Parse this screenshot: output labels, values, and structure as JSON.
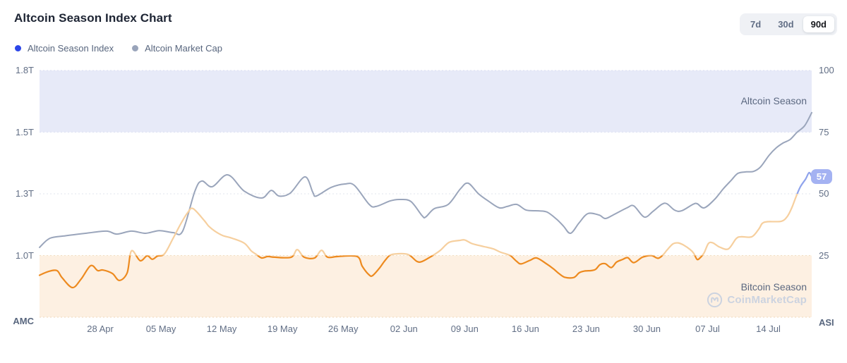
{
  "page": {
    "title": "Altcoin Season Index Chart",
    "watermark": "CoinMarketCap"
  },
  "header": {
    "ranges": [
      {
        "label": "7d",
        "active": false
      },
      {
        "label": "30d",
        "active": false
      },
      {
        "label": "90d",
        "active": true
      }
    ]
  },
  "legend": [
    {
      "label": "Altcoin Season Index",
      "dot_color": "#2c46e8"
    },
    {
      "label": "Altcoin Market Cap",
      "dot_color": "#99a4ba"
    }
  ],
  "chart_data": {
    "type": "line",
    "title": "Altcoin Season Index Chart",
    "x_days": 89,
    "x_ticks": [
      {
        "day": 7,
        "label": "28 Apr"
      },
      {
        "day": 14,
        "label": "05 May"
      },
      {
        "day": 21,
        "label": "12 May"
      },
      {
        "day": 28,
        "label": "19 May"
      },
      {
        "day": 35,
        "label": "26 May"
      },
      {
        "day": 42,
        "label": "02 Jun"
      },
      {
        "day": 49,
        "label": "09 Jun"
      },
      {
        "day": 56,
        "label": "16 Jun"
      },
      {
        "day": 63,
        "label": "23 Jun"
      },
      {
        "day": 70,
        "label": "30 Jun"
      },
      {
        "day": 77,
        "label": "07 Jul"
      },
      {
        "day": 84,
        "label": "14 Jul"
      }
    ],
    "y_left": {
      "name": "AMC",
      "ticks": [
        {
          "label": "1.8T",
          "value": 1.75
        },
        {
          "label": "1.5T",
          "value": 1.5
        },
        {
          "label": "1.3T",
          "value": 1.25
        },
        {
          "label": "1.0T",
          "value": 1.0
        }
      ]
    },
    "y_right": {
      "name": "ASI",
      "range": [
        0,
        100
      ],
      "ticks": [
        {
          "label": "100",
          "value": 100
        },
        {
          "label": "75",
          "value": 75
        },
        {
          "label": "50",
          "value": 50
        },
        {
          "label": "25",
          "value": 25
        }
      ]
    },
    "bands": [
      {
        "name": "Altcoin Season",
        "axis": "right",
        "range": [
          75,
          100
        ],
        "fill": "#e7eaf8"
      },
      {
        "name": "Bitcoin Season",
        "axis": "right",
        "range": [
          0,
          25
        ],
        "fill": "#fdf0e2"
      }
    ],
    "gridlines": [
      {
        "value": 100,
        "color": "#d9def0"
      },
      {
        "value": 75,
        "color": "#dde1f2"
      },
      {
        "value": 50,
        "color": "#e2e5ec"
      },
      {
        "value": 25,
        "color": "#f1dec3"
      },
      {
        "value": 0,
        "color": "#eed8bb"
      }
    ],
    "series": [
      {
        "name": "Altcoin Market Cap",
        "axis": "left",
        "color": "#9aa5bb",
        "points": [
          [
            0,
            1.033
          ],
          [
            1.2,
            1.07
          ],
          [
            3,
            1.08
          ],
          [
            5.3,
            1.09
          ],
          [
            7.7,
            1.099
          ],
          [
            8.9,
            1.087
          ],
          [
            10.6,
            1.099
          ],
          [
            12.2,
            1.09
          ],
          [
            13.8,
            1.101
          ],
          [
            15.4,
            1.093
          ],
          [
            16.5,
            1.099
          ],
          [
            17.9,
            1.26
          ],
          [
            18.7,
            1.302
          ],
          [
            19.9,
            1.279
          ],
          [
            21.7,
            1.327
          ],
          [
            23.6,
            1.261
          ],
          [
            25.6,
            1.233
          ],
          [
            26.7,
            1.264
          ],
          [
            27.6,
            1.241
          ],
          [
            28.9,
            1.253
          ],
          [
            30.6,
            1.319
          ],
          [
            31.5,
            1.256
          ],
          [
            31.9,
            1.241
          ],
          [
            33.6,
            1.276
          ],
          [
            35.2,
            1.29
          ],
          [
            36.3,
            1.284
          ],
          [
            38,
            1.207
          ],
          [
            38.8,
            1.199
          ],
          [
            40.4,
            1.221
          ],
          [
            41.5,
            1.227
          ],
          [
            42.8,
            1.219
          ],
          [
            44.1,
            1.161
          ],
          [
            44.5,
            1.156
          ],
          [
            45.5,
            1.19
          ],
          [
            47.1,
            1.207
          ],
          [
            48.5,
            1.27
          ],
          [
            49.4,
            1.293
          ],
          [
            50.6,
            1.25
          ],
          [
            51.8,
            1.219
          ],
          [
            53,
            1.193
          ],
          [
            53.9,
            1.199
          ],
          [
            55,
            1.207
          ],
          [
            56.1,
            1.184
          ],
          [
            57.5,
            1.181
          ],
          [
            58.5,
            1.176
          ],
          [
            59.6,
            1.147
          ],
          [
            60.4,
            1.119
          ],
          [
            61.2,
            1.09
          ],
          [
            62.2,
            1.133
          ],
          [
            63.2,
            1.17
          ],
          [
            64.5,
            1.164
          ],
          [
            65.2,
            1.15
          ],
          [
            66.1,
            1.164
          ],
          [
            67.7,
            1.193
          ],
          [
            68.5,
            1.201
          ],
          [
            69.7,
            1.156
          ],
          [
            70.7,
            1.179
          ],
          [
            71.7,
            1.207
          ],
          [
            72.3,
            1.21
          ],
          [
            73.2,
            1.184
          ],
          [
            74,
            1.181
          ],
          [
            75.3,
            1.207
          ],
          [
            75.8,
            1.21
          ],
          [
            76.6,
            1.193
          ],
          [
            77.8,
            1.227
          ],
          [
            78.8,
            1.27
          ],
          [
            79.7,
            1.304
          ],
          [
            80.5,
            1.333
          ],
          [
            81.5,
            1.339
          ],
          [
            82.3,
            1.341
          ],
          [
            83.1,
            1.359
          ],
          [
            84.1,
            1.407
          ],
          [
            84.9,
            1.436
          ],
          [
            85.7,
            1.456
          ],
          [
            86.5,
            1.47
          ],
          [
            87.3,
            1.499
          ],
          [
            88.2,
            1.527
          ],
          [
            89,
            1.579
          ]
        ]
      },
      {
        "name": "Altcoin Season Index",
        "axis": "right",
        "segment_colors": {
          "below_25": "#ed8a1f",
          "25_to_50": "#f6cf9e",
          "above_50": "#8fa3ec"
        },
        "points": [
          [
            0,
            17
          ],
          [
            1,
            18.5
          ],
          [
            2,
            18.9
          ],
          [
            2.6,
            16
          ],
          [
            3.8,
            12
          ],
          [
            4.8,
            15.5
          ],
          [
            5.9,
            20.9
          ],
          [
            6.7,
            18.9
          ],
          [
            7.3,
            19.1
          ],
          [
            8.4,
            17.7
          ],
          [
            9.2,
            14.9
          ],
          [
            10.1,
            18
          ],
          [
            10.6,
            26.9
          ],
          [
            11.6,
            22.9
          ],
          [
            12.4,
            24.9
          ],
          [
            13,
            23.5
          ],
          [
            13.6,
            24.8
          ],
          [
            14.4,
            25.7
          ],
          [
            15.4,
            32
          ],
          [
            16.3,
            38
          ],
          [
            17.1,
            42.5
          ],
          [
            17.7,
            44
          ],
          [
            19,
            39.1
          ],
          [
            19.5,
            36.9
          ],
          [
            20.2,
            34.9
          ],
          [
            21.1,
            33.1
          ],
          [
            22.2,
            32
          ],
          [
            23.6,
            30
          ],
          [
            24.4,
            26.9
          ],
          [
            25,
            25.4
          ],
          [
            25.6,
            24
          ],
          [
            26.3,
            24.6
          ],
          [
            27.1,
            24.3
          ],
          [
            29,
            24.3
          ],
          [
            29.7,
            27.4
          ],
          [
            30.5,
            24.3
          ],
          [
            31.7,
            24
          ],
          [
            32.5,
            27.1
          ],
          [
            33.2,
            24.3
          ],
          [
            34.4,
            24.6
          ],
          [
            36.6,
            24.6
          ],
          [
            37.2,
            20.6
          ],
          [
            38,
            17.1
          ],
          [
            38.4,
            16.9
          ],
          [
            39.2,
            20
          ],
          [
            39.8,
            22.9
          ],
          [
            40.4,
            25.1
          ],
          [
            41.2,
            25.7
          ],
          [
            42.5,
            25.4
          ],
          [
            43.5,
            22.6
          ],
          [
            44.1,
            22.6
          ],
          [
            45,
            24.3
          ],
          [
            45.5,
            25.4
          ],
          [
            46.2,
            27.1
          ],
          [
            47.2,
            30.3
          ],
          [
            48.4,
            31.1
          ],
          [
            49,
            31.3
          ],
          [
            49.8,
            29.9
          ],
          [
            50.6,
            29.1
          ],
          [
            51.5,
            28.4
          ],
          [
            52.3,
            27.7
          ],
          [
            53.1,
            26.4
          ],
          [
            53.8,
            25.6
          ],
          [
            54.3,
            24.9
          ],
          [
            55,
            22.6
          ],
          [
            55.5,
            21.6
          ],
          [
            56.5,
            23
          ],
          [
            57.3,
            24
          ],
          [
            58.4,
            21.7
          ],
          [
            59.2,
            19.7
          ],
          [
            59.9,
            17.6
          ],
          [
            60.6,
            16.1
          ],
          [
            61.6,
            16.1
          ],
          [
            62.2,
            18
          ],
          [
            62.8,
            18.7
          ],
          [
            63.6,
            18.9
          ],
          [
            64.1,
            19.4
          ],
          [
            64.6,
            21.3
          ],
          [
            65.2,
            21.7
          ],
          [
            65.9,
            20.1
          ],
          [
            66.5,
            22.3
          ],
          [
            67.2,
            23.4
          ],
          [
            67.8,
            24.1
          ],
          [
            68.5,
            22.1
          ],
          [
            69.5,
            24.3
          ],
          [
            70.5,
            25
          ],
          [
            71.3,
            23.9
          ],
          [
            71.9,
            25.4
          ],
          [
            72.3,
            27.1
          ],
          [
            73,
            29.7
          ],
          [
            73.6,
            30.1
          ],
          [
            74.2,
            29.3
          ],
          [
            75,
            27.4
          ],
          [
            75.4,
            25.9
          ],
          [
            75.8,
            23.4
          ],
          [
            76.2,
            24.3
          ],
          [
            76.6,
            26.1
          ],
          [
            77.1,
            29.9
          ],
          [
            77.6,
            30.1
          ],
          [
            78.4,
            28.4
          ],
          [
            79.4,
            27.7
          ],
          [
            80.3,
            31.9
          ],
          [
            80.9,
            32.6
          ],
          [
            82.1,
            32.6
          ],
          [
            82.9,
            35.7
          ],
          [
            83.3,
            38
          ],
          [
            83.9,
            38.7
          ],
          [
            85.5,
            38.9
          ],
          [
            86.2,
            40.9
          ],
          [
            86.7,
            44.3
          ],
          [
            87.2,
            48.9
          ],
          [
            87.7,
            52.9
          ],
          [
            88.3,
            56
          ],
          [
            88.7,
            58.6
          ],
          [
            89,
            57
          ]
        ]
      }
    ],
    "current_value": 57,
    "badge_color": "#a4b2f2",
    "legend_position": "top-left",
    "grid": "dotted-horizontal"
  }
}
